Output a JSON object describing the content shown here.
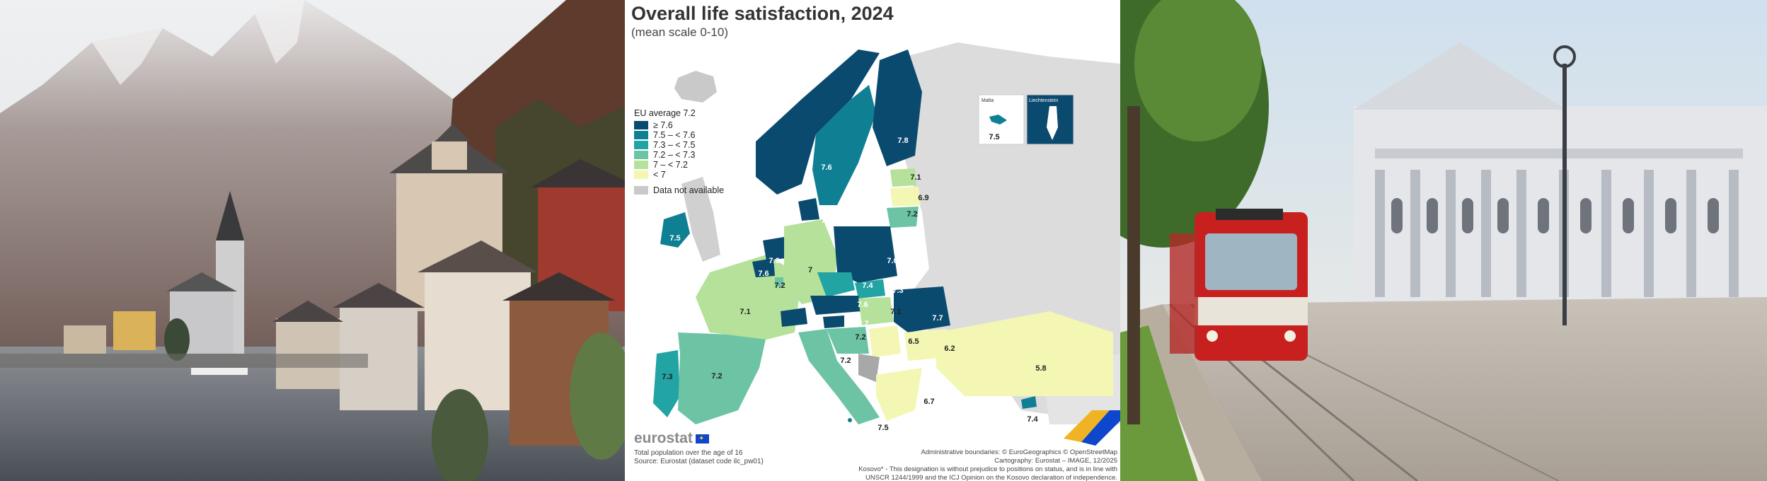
{
  "map": {
    "title": "Overall life satisfaction, 2024",
    "subtitle": "(mean scale 0-10)",
    "legend": {
      "title": "EU average 7.2",
      "items": [
        {
          "label": "≥ 7.6",
          "color": "#0b4a6f"
        },
        {
          "label": "7.5 – < 7.6",
          "color": "#0f7f94"
        },
        {
          "label": "7.3 – < 7.5",
          "color": "#22a3a4"
        },
        {
          "label": "7.2 – < 7.3",
          "color": "#6cc4a4"
        },
        {
          "label": "7 – < 7.2",
          "color": "#b5e19a"
        },
        {
          "label": "< 7",
          "color": "#f3f7b3"
        }
      ],
      "na_label": "Data not available",
      "na_color": "#c9c9c9"
    },
    "region_values": {
      "iceland": "",
      "ireland": "7.5",
      "portugal": "7.3",
      "spain": "7.2",
      "france": "7.1",
      "belgium": "7.6",
      "netherlands": "7.6",
      "luxembourg": "7.2",
      "germany": "7",
      "denmark": "7.6",
      "norway": "7.6",
      "sweden": "7.4",
      "finland": "7.8",
      "estonia": "7.1",
      "latvia": "6.9",
      "lithuania": "7.2",
      "poland": "7.6",
      "czechia": "7.4",
      "slovakia": "7.3",
      "austria": "7.6",
      "switzerland": "7.7",
      "hungary": "7.1",
      "slovenia": "7.7",
      "croatia": "7.2",
      "italy": "7.2",
      "romania": "7.7",
      "serbia": "6.5",
      "bulgaria": "6.2",
      "turkey": "5.8",
      "greece": "6.7",
      "cyprus": "7.4",
      "malta": "7.5"
    },
    "insets": {
      "malta_label": "Malta",
      "malta_value": "7.5",
      "liechtenstein_label": "Liechtenstein"
    },
    "logo_text": "eurostat",
    "footer_left": [
      "Total population over the age of 16",
      "Source: Eurostat (dataset code ilc_pw01)"
    ],
    "footer_right": [
      "Administrative boundaries: © EuroGeographics © OpenStreetMap",
      "Cartography: Eurostat – IMAGE, 12/2025",
      "Kosovo* - This designation is without prejudice to positions on status, and is in line with",
      "UNSCR 1244/1999 and the ICJ Opinion on the Kosovo declaration of independence."
    ]
  }
}
